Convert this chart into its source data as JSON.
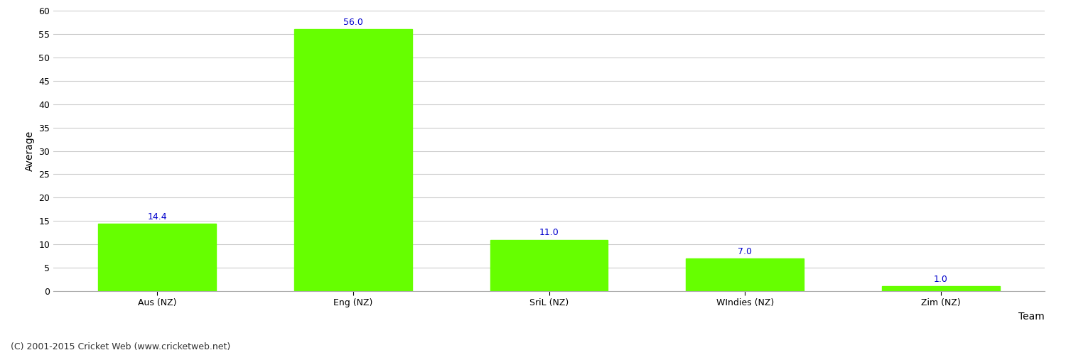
{
  "categories": [
    "Aus (NZ)",
    "Eng (NZ)",
    "SriL (NZ)",
    "WIndies (NZ)",
    "Zim (NZ)"
  ],
  "values": [
    14.4,
    56.0,
    11.0,
    7.0,
    1.0
  ],
  "bar_color": "#66ff00",
  "bar_edge_color": "#66ff00",
  "value_color": "#0000cc",
  "xlabel": "Team",
  "ylabel": "Average",
  "ylim": [
    0,
    60
  ],
  "yticks": [
    0,
    5,
    10,
    15,
    20,
    25,
    30,
    35,
    40,
    45,
    50,
    55,
    60
  ],
  "background_color": "#ffffff",
  "grid_color": "#cccccc",
  "footer": "(C) 2001-2015 Cricket Web (www.cricketweb.net)",
  "value_fontsize": 9,
  "axis_label_fontsize": 10,
  "tick_fontsize": 9,
  "footer_fontsize": 9,
  "bar_width": 0.6
}
